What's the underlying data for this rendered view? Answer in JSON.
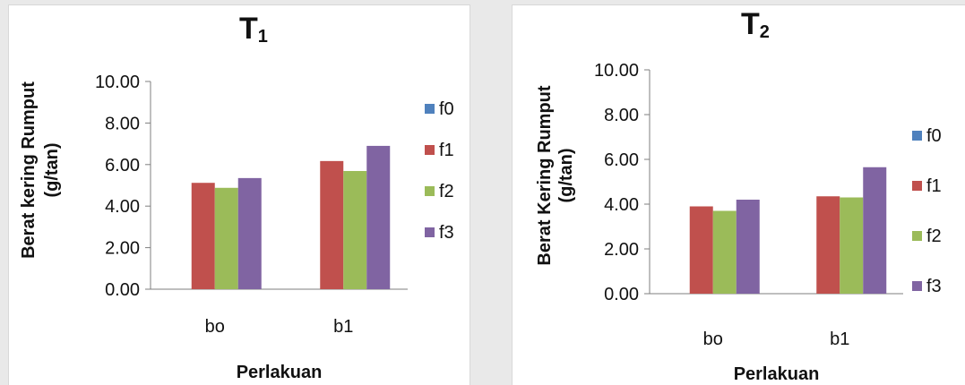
{
  "chart_data": [
    {
      "type": "bar",
      "title_main": "T",
      "title_sub": "1",
      "categories": [
        "bo",
        "b1"
      ],
      "series": [
        {
          "name": "f0",
          "values": [
            0,
            0
          ]
        },
        {
          "name": "f1",
          "values": [
            5.12,
            6.17
          ]
        },
        {
          "name": "f2",
          "values": [
            4.88,
            5.69
          ]
        },
        {
          "name": "f3",
          "values": [
            5.35,
            6.9
          ]
        }
      ],
      "ylabel_line1": "Berat kering Rumput",
      "ylabel_line2": "(g/tan)",
      "xlabel": "Perlakuan",
      "ylim": [
        0,
        10
      ],
      "yticks": [
        "0.00",
        "2.00",
        "4.00",
        "6.00",
        "8.00",
        "10.00"
      ],
      "grid": false,
      "legend_position": "right"
    },
    {
      "type": "bar",
      "title_main": "T",
      "title_sub": "2",
      "categories": [
        "bo",
        "b1"
      ],
      "series": [
        {
          "name": "f0",
          "values": [
            0,
            0
          ]
        },
        {
          "name": "f1",
          "values": [
            3.9,
            4.35
          ]
        },
        {
          "name": "f2",
          "values": [
            3.7,
            4.3
          ]
        },
        {
          "name": "f3",
          "values": [
            4.2,
            5.65
          ]
        }
      ],
      "ylabel_line1": "Berat Kering Rumput",
      "ylabel_line2": "(g/tan)",
      "xlabel": "Perlakuan",
      "ylim": [
        0,
        10
      ],
      "yticks": [
        "0.00",
        "2.00",
        "4.00",
        "6.00",
        "8.00",
        "10.00"
      ],
      "grid": false,
      "legend_position": "right"
    }
  ],
  "colors": {
    "f0": "#4f81bd",
    "f1": "#c0504d",
    "f2": "#9bbb59",
    "f3": "#8064a2",
    "axis": "#7f7f7f"
  }
}
